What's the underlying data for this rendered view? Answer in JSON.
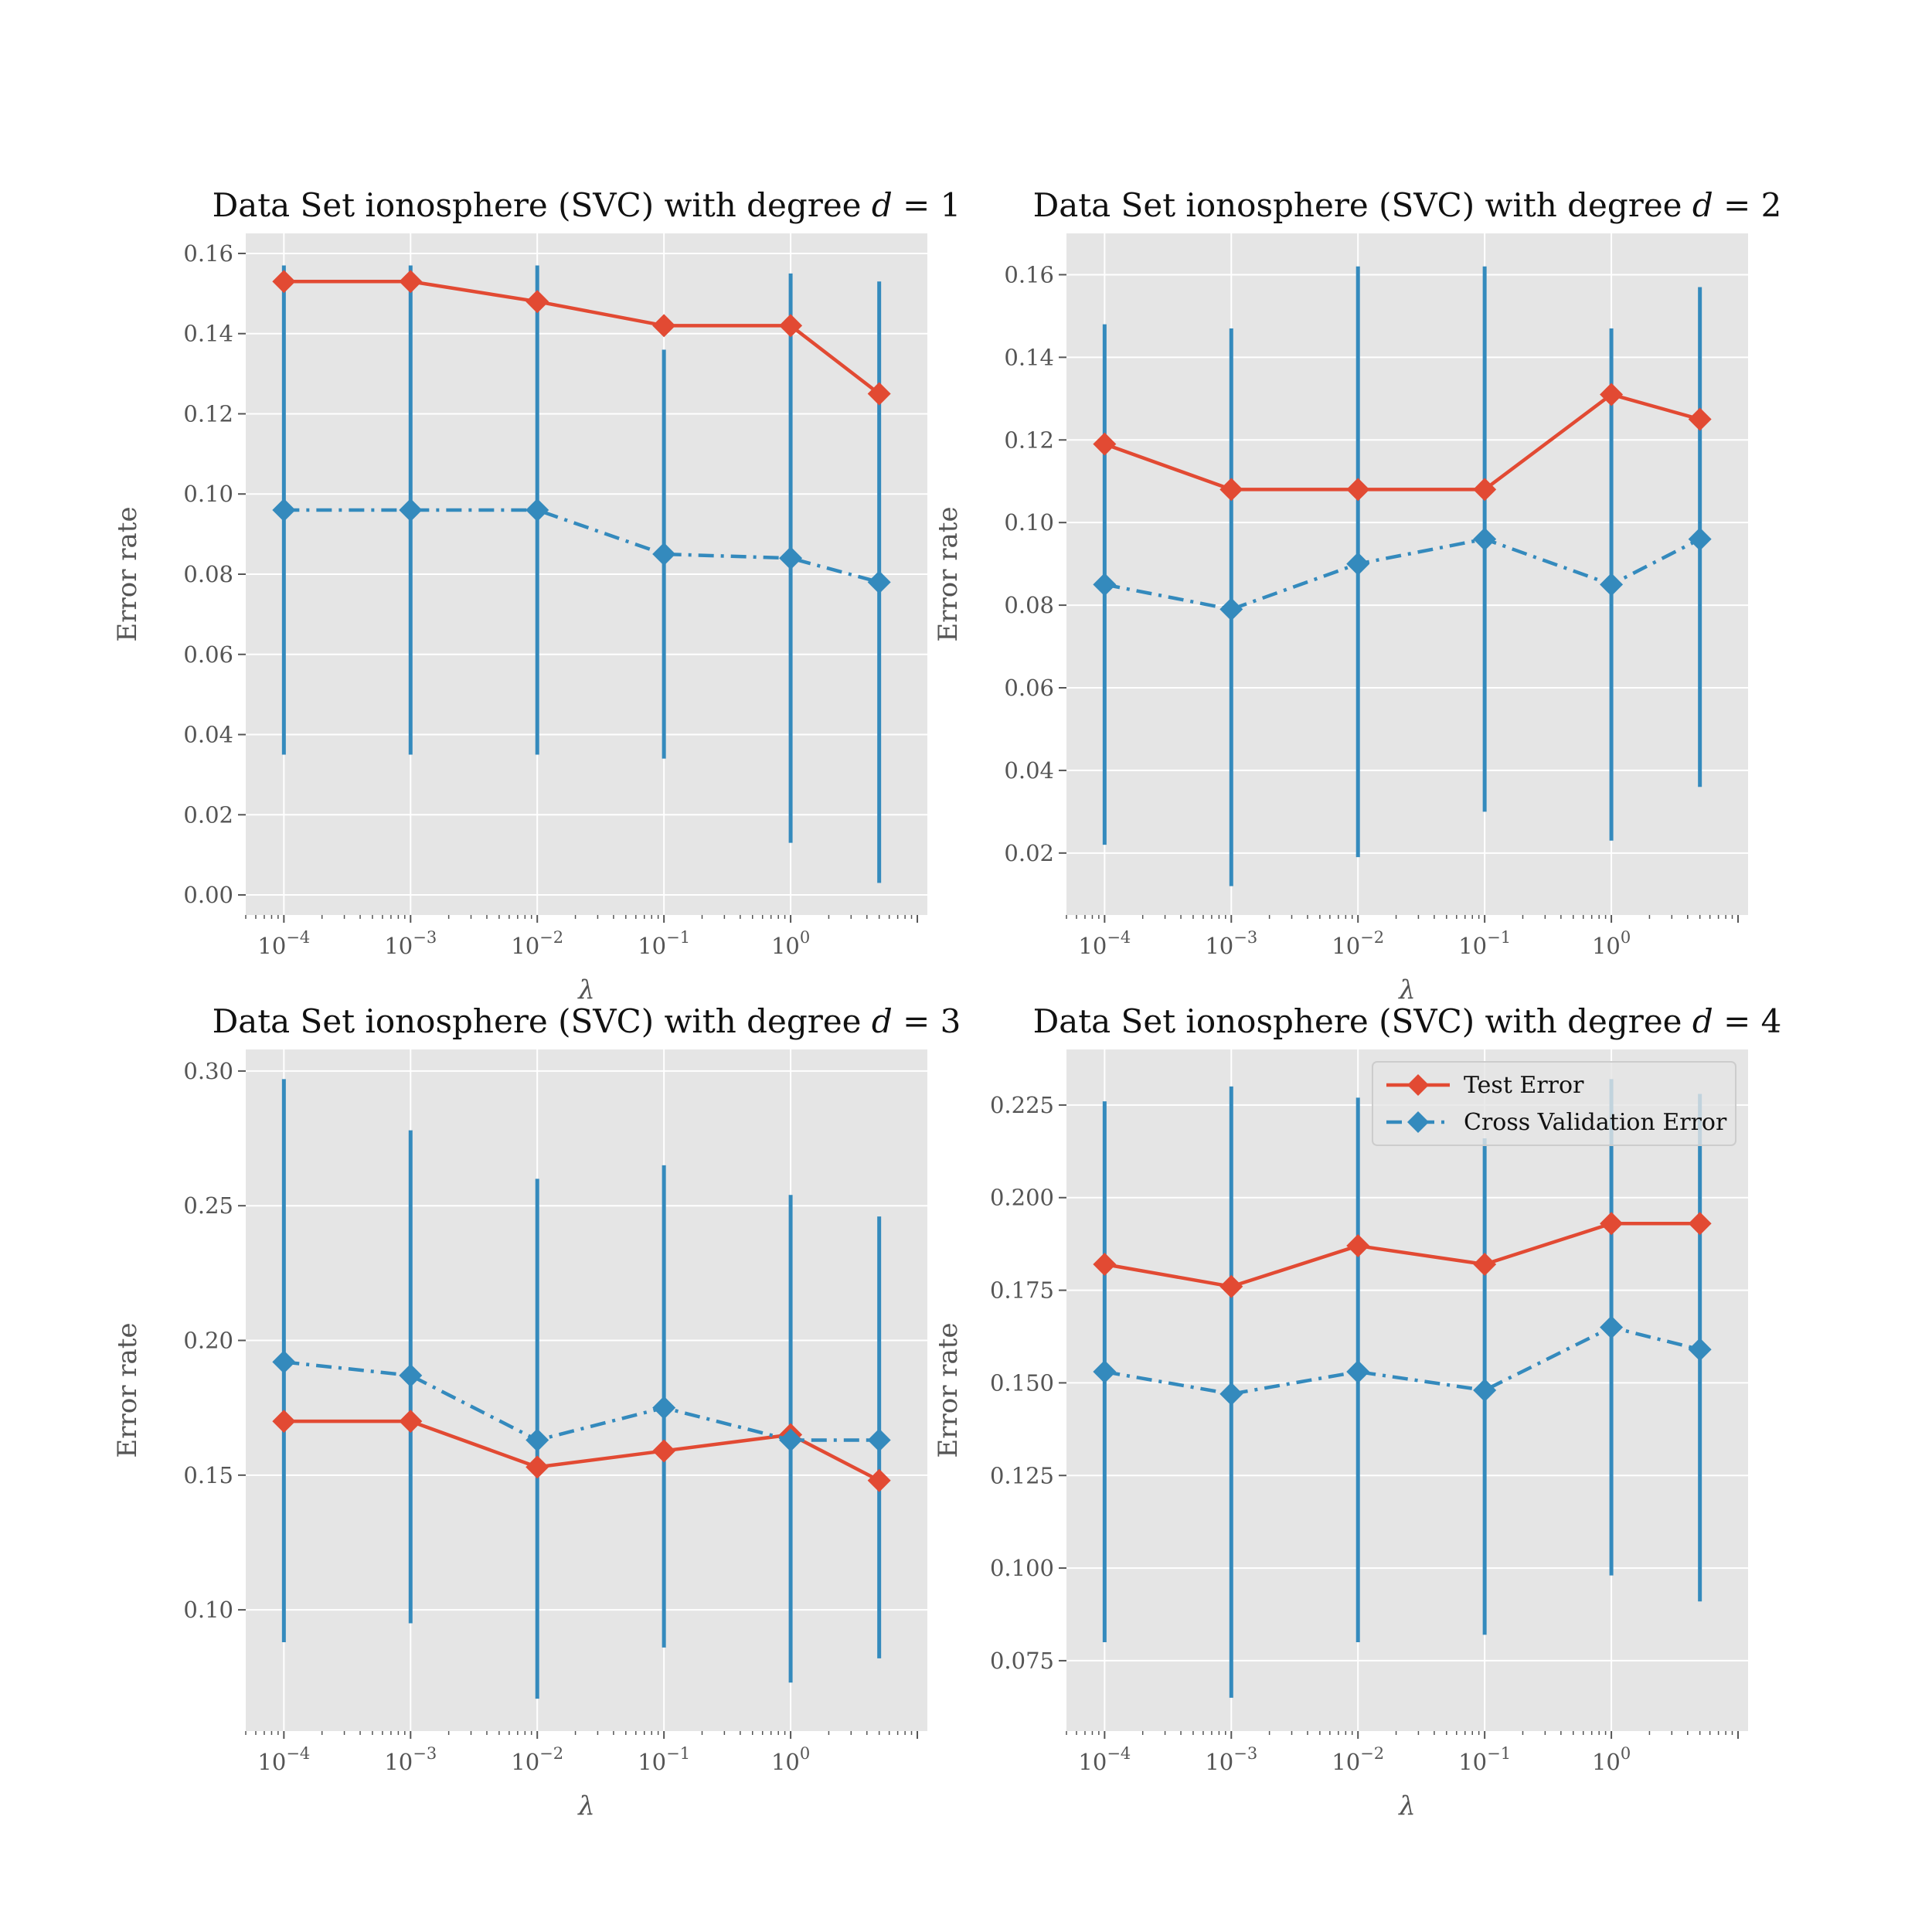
{
  "colors": {
    "test": "#e24a33",
    "cv": "#348abd",
    "panel_bg": "#e5e5e5",
    "grid": "#ffffff"
  },
  "legend": {
    "items": [
      {
        "label": "Test Error",
        "color": "#e24a33",
        "dash": "solid"
      },
      {
        "label": "Cross Validation Error",
        "color": "#348abd",
        "dash": "dashdot"
      }
    ]
  },
  "chart_data": [
    {
      "type": "line",
      "title": "Data Set ionosphere (SVC) with degree d = 1",
      "xlabel": "λ",
      "ylabel": "Error rate",
      "xscale": "log",
      "xticks": [
        "10^-4",
        "10^-3",
        "10^-2",
        "10^-1",
        "10^0"
      ],
      "xlim": [
        5e-05,
        12
      ],
      "ylim": [
        -0.005,
        0.165
      ],
      "yticks": [
        0.0,
        0.02,
        0.04,
        0.06,
        0.08,
        0.1,
        0.12,
        0.14,
        0.16
      ],
      "ytick_decimals": 2,
      "grid": true,
      "x": [
        0.0001,
        0.001,
        0.01,
        0.1,
        1,
        5
      ],
      "series": [
        {
          "name": "Test Error",
          "style": "solid",
          "values": [
            0.153,
            0.153,
            0.148,
            0.142,
            0.142,
            0.125
          ]
        },
        {
          "name": "Cross Validation Error",
          "style": "dashdot",
          "values": [
            0.096,
            0.096,
            0.096,
            0.085,
            0.084,
            0.078
          ],
          "error_low": [
            0.035,
            0.035,
            0.035,
            0.034,
            0.013,
            0.003
          ],
          "error_high": [
            0.157,
            0.157,
            0.157,
            0.136,
            0.155,
            0.153
          ]
        }
      ]
    },
    {
      "type": "line",
      "title": "Data Set ionosphere (SVC) with degree d = 2",
      "xlabel": "λ",
      "ylabel": "Error rate",
      "xscale": "log",
      "xticks": [
        "10^-4",
        "10^-3",
        "10^-2",
        "10^-1",
        "10^0"
      ],
      "xlim": [
        5e-05,
        12
      ],
      "ylim": [
        0.005,
        0.17
      ],
      "yticks": [
        0.02,
        0.04,
        0.06,
        0.08,
        0.1,
        0.12,
        0.14,
        0.16
      ],
      "ytick_decimals": 2,
      "grid": true,
      "x": [
        0.0001,
        0.001,
        0.01,
        0.1,
        1,
        5
      ],
      "series": [
        {
          "name": "Test Error",
          "style": "solid",
          "values": [
            0.119,
            0.108,
            0.108,
            0.108,
            0.131,
            0.125
          ]
        },
        {
          "name": "Cross Validation Error",
          "style": "dashdot",
          "values": [
            0.085,
            0.079,
            0.09,
            0.096,
            0.085,
            0.096
          ],
          "error_low": [
            0.022,
            0.012,
            0.019,
            0.03,
            0.023,
            0.036
          ],
          "error_high": [
            0.148,
            0.147,
            0.162,
            0.162,
            0.147,
            0.157
          ]
        }
      ]
    },
    {
      "type": "line",
      "title": "Data Set ionosphere (SVC) with degree d = 3",
      "xlabel": "λ",
      "ylabel": "Error rate",
      "xscale": "log",
      "xticks": [
        "10^-4",
        "10^-3",
        "10^-2",
        "10^-1",
        "10^0"
      ],
      "xlim": [
        5e-05,
        12
      ],
      "ylim": [
        0.055,
        0.308
      ],
      "yticks": [
        0.1,
        0.15,
        0.2,
        0.25,
        0.3
      ],
      "ytick_decimals": 2,
      "grid": true,
      "x": [
        0.0001,
        0.001,
        0.01,
        0.1,
        1,
        5
      ],
      "series": [
        {
          "name": "Test Error",
          "style": "solid",
          "values": [
            0.17,
            0.17,
            0.153,
            0.159,
            0.165,
            0.148
          ]
        },
        {
          "name": "Cross Validation Error",
          "style": "dashdot",
          "values": [
            0.192,
            0.187,
            0.163,
            0.175,
            0.163,
            0.163
          ],
          "error_low": [
            0.088,
            0.095,
            0.067,
            0.086,
            0.073,
            0.082
          ],
          "error_high": [
            0.297,
            0.278,
            0.26,
            0.265,
            0.254,
            0.246
          ]
        }
      ]
    },
    {
      "type": "line",
      "title": "Data Set ionosphere (SVC) with degree d = 4",
      "xlabel": "λ",
      "ylabel": "Error rate",
      "xscale": "log",
      "xticks": [
        "10^-4",
        "10^-3",
        "10^-2",
        "10^-1",
        "10^0"
      ],
      "xlim": [
        5e-05,
        12
      ],
      "ylim": [
        0.056,
        0.24
      ],
      "yticks": [
        0.075,
        0.1,
        0.125,
        0.15,
        0.175,
        0.2,
        0.225
      ],
      "ytick_decimals": 3,
      "grid": true,
      "legend": "top-right",
      "x": [
        0.0001,
        0.001,
        0.01,
        0.1,
        1,
        5
      ],
      "series": [
        {
          "name": "Test Error",
          "style": "solid",
          "values": [
            0.182,
            0.176,
            0.187,
            0.182,
            0.193,
            0.193
          ]
        },
        {
          "name": "Cross Validation Error",
          "style": "dashdot",
          "values": [
            0.153,
            0.147,
            0.153,
            0.148,
            0.165,
            0.159
          ],
          "error_low": [
            0.08,
            0.065,
            0.08,
            0.082,
            0.098,
            0.091
          ],
          "error_high": [
            0.226,
            0.23,
            0.227,
            0.216,
            0.232,
            0.228
          ]
        }
      ]
    }
  ]
}
